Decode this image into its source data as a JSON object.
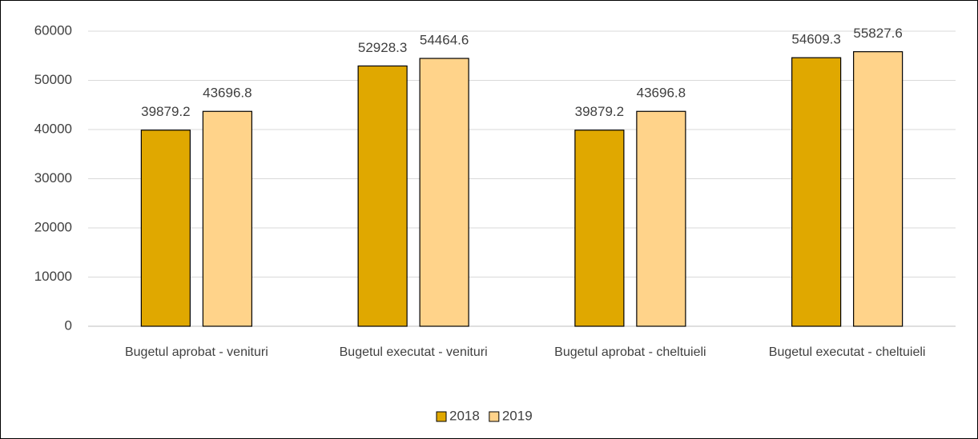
{
  "chart_data": {
    "type": "bar",
    "categories": [
      "Bugetul aprobat - venituri",
      "Bugetul executat - venituri",
      "Bugetul aprobat - cheltuieli",
      "Bugetul executat - cheltuieli"
    ],
    "series": [
      {
        "name": "2018",
        "color": "#e0a800",
        "values": [
          39879.2,
          52928.3,
          39879.2,
          54609.3
        ]
      },
      {
        "name": "2019",
        "color": "#ffd38a",
        "values": [
          43696.8,
          54464.6,
          43696.8,
          55827.6
        ]
      }
    ],
    "ylim": [
      0,
      60000
    ],
    "yticks": [
      0,
      10000,
      20000,
      30000,
      40000,
      50000,
      60000
    ],
    "grid": true,
    "legend": "bottom"
  }
}
